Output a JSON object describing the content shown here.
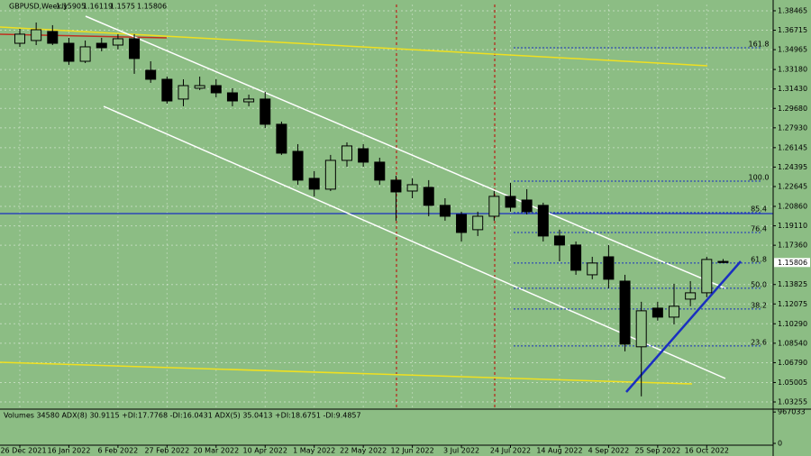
{
  "chart_data": {
    "type": "candlestick",
    "title": "GBPUSD,Weekly",
    "categories": [
      "26 Dec 2021",
      null,
      null,
      "16 Jan 2022",
      null,
      null,
      "6 Feb 2022",
      null,
      null,
      "27 Feb 2022",
      null,
      null,
      "20 Mar 2022",
      null,
      null,
      "10 Apr 2022",
      null,
      null,
      "1 May 2022",
      null,
      null,
      "22 May 2022",
      null,
      null,
      "12 Jun 2022",
      null,
      null,
      "3 Jul 2022",
      null,
      null,
      "24 Jul 2022",
      null,
      null,
      "14 Aug 2022",
      null,
      null,
      "4 Sep 2022",
      null,
      null,
      "25 Sep 2022",
      null,
      null,
      "16 Oct 2022",
      null
    ],
    "open": [
      1.3554,
      1.3579,
      1.366,
      1.3554,
      1.3392,
      1.3554,
      1.3538,
      1.3595,
      1.3311,
      1.323,
      1.3052,
      1.3149,
      1.3173,
      1.3108,
      1.3027,
      1.3052,
      1.2825,
      1.2581,
      1.2338,
      1.2241,
      1.25,
      1.2605,
      1.2484,
      1.2322,
      1.2224,
      1.2257,
      1.2095,
      1.2013,
      1.1876,
      1.1997,
      1.2176,
      1.2143,
      1.2095,
      1.1819,
      1.1738,
      1.147,
      1.1632,
      1.1413,
      1.0822,
      1.117,
      1.1089,
      1.1251,
      1.1308,
      1.15905
    ],
    "high": [
      1.3684,
      1.3741,
      1.3717,
      1.3603,
      1.3579,
      1.3603,
      1.3636,
      1.3636,
      1.3392,
      1.3254,
      1.323,
      1.3254,
      1.323,
      1.3149,
      1.3092,
      1.3116,
      1.2849,
      1.2646,
      1.2403,
      1.2549,
      1.2662,
      1.2646,
      1.2524,
      1.2362,
      1.2338,
      1.2322,
      1.2159,
      1.2038,
      1.2038,
      1.2224,
      1.2297,
      1.2241,
      1.2119,
      1.1876,
      1.177,
      1.1632,
      1.1738,
      1.147,
      1.1227,
      1.1227,
      1.1389,
      1.1413,
      1.1632,
      1.16119
    ],
    "low": [
      1.3522,
      1.3538,
      1.3538,
      1.336,
      1.3376,
      1.3482,
      1.3498,
      1.3279,
      1.3198,
      1.3011,
      1.2987,
      1.3133,
      1.3068,
      1.2987,
      1.2987,
      1.2792,
      1.2549,
      1.2281,
      1.2176,
      1.2224,
      1.2443,
      1.2443,
      1.2281,
      1.1957,
      1.2159,
      1.1997,
      1.1957,
      1.177,
      1.1819,
      1.1957,
      1.2038,
      1.2013,
      1.177,
      1.1592,
      1.147,
      1.143,
      1.1349,
      1.0781,
      1.0376,
      1.1057,
      1.1024,
      1.1187,
      1.1268,
      1.1575
    ],
    "close": [
      1.3636,
      1.3676,
      1.3554,
      1.3392,
      1.3522,
      1.3514,
      1.3595,
      1.3417,
      1.323,
      1.3035,
      1.3173,
      1.3173,
      1.3108,
      1.3035,
      1.3052,
      1.2825,
      1.2565,
      1.2322,
      1.2241,
      1.25,
      1.263,
      1.2484,
      1.2322,
      1.2216,
      1.2281,
      1.2095,
      1.1997,
      1.1851,
      1.1997,
      1.2176,
      1.2078,
      1.2038,
      1.1819,
      1.1738,
      1.1511,
      1.1576,
      1.143,
      1.0846,
      1.1146,
      1.1089,
      1.1187,
      1.1308,
      1.1608,
      1.15806
    ],
    "up_color": "#8fbf85",
    "down_color": "#000000",
    "ylim": [
      1.0277,
      1.3903
    ],
    "yticks": [
      1.38465,
      1.36715,
      1.34965,
      {
        "value": 1.3318,
        "label": "1.33180"
      },
      {
        "value": 1.3143,
        "label": "1.31430"
      },
      {
        "value": 1.2968,
        "label": "1.29680"
      },
      {
        "value": 1.2793,
        "label": "1.27930"
      },
      1.26145,
      1.24395,
      1.22645,
      {
        "value": 1.2086,
        "label": "1.20860"
      },
      {
        "value": 1.1911,
        "label": "1.19110"
      },
      {
        "value": 1.1736,
        "label": "1.17360"
      },
      1.13825,
      1.12075,
      {
        "value": 1.1029,
        "label": "1.10290"
      },
      {
        "value": 1.0854,
        "label": "1.08540"
      },
      {
        "value": 1.0679,
        "label": "1.06790"
      },
      1.05005,
      1.03255
    ],
    "grid": true,
    "fib_levels": [
      {
        "label": "161.8",
        "value": 1.3514
      },
      {
        "label": "100.0",
        "value": 1.2313
      },
      {
        "label": "85.4",
        "value": 1.203
      },
      {
        "label": "76.4",
        "value": 1.1851
      },
      {
        "label": "61.8",
        "value": 1.1576
      },
      {
        "label": "50.0",
        "value": 1.1349
      },
      {
        "label": "38.2",
        "value": 1.1162
      },
      {
        "label": "23.6",
        "value": 1.083
      }
    ],
    "volume_label": "Volumes 34580  ADX(8) 30.9115 +DI:17.7768 -DI:16.0431  ADX(5) 35.0413 +DI:18.6751 -DI:9.4857",
    "volume_ylim": [
      0,
      1000000
    ],
    "volume_yticks": [
      0,
      967033
    ]
  }
}
